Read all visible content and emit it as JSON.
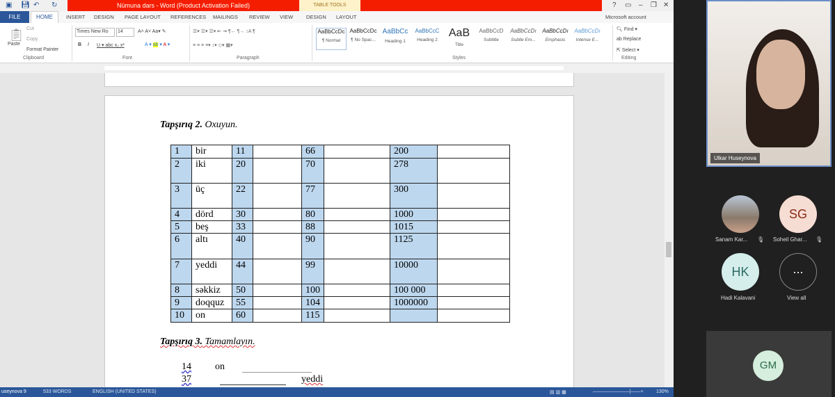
{
  "window": {
    "title": "Nümuna dars -  Word (Product Activation Failed)",
    "context_tab": "TABLE TOOLS",
    "account": "Microsoft account"
  },
  "tabs": [
    "FILE",
    "HOME",
    "INSERT",
    "DESIGN",
    "PAGE LAYOUT",
    "REFERENCES",
    "MAILINGS",
    "REVIEW",
    "VIEW",
    "DESIGN",
    "LAYOUT"
  ],
  "clipboard": {
    "paste": "Paste",
    "cut": "Cut",
    "copy": "Copy",
    "format_painter": "Format Painter",
    "label": "Clipboard"
  },
  "font": {
    "name": "Times New Ro",
    "size": "14",
    "label": "Font"
  },
  "paragraph": {
    "label": "Paragraph"
  },
  "styles": {
    "label": "Styles",
    "items": [
      {
        "preview": "AaBbCcDc",
        "name": "¶ Normal"
      },
      {
        "preview": "AaBbCcDc",
        "name": "¶ No Spac..."
      },
      {
        "preview": "AaBbCc",
        "name": "Heading 1"
      },
      {
        "preview": "AaBbCcC",
        "name": "Heading 2"
      },
      {
        "preview": "AaB",
        "name": "Title"
      },
      {
        "preview": "AaBbCcD",
        "name": "Subtitle"
      },
      {
        "preview": "AaBbCcDı",
        "name": "Subtle Em..."
      },
      {
        "preview": "AaBbCcDı",
        "name": "Emphasis"
      },
      {
        "preview": "AaBbCcDı",
        "name": "Intense E..."
      }
    ]
  },
  "editing": {
    "find": "Find",
    "replace": "Replace",
    "select": "Select",
    "label": "Editing"
  },
  "document": {
    "task2_bold": "Tapşırıq 2.",
    "task2_rest": " Oxuyun.",
    "table": [
      [
        "1",
        "bir",
        "11",
        "",
        "66",
        "",
        "200",
        ""
      ],
      [
        "2",
        "iki",
        "20",
        "",
        "70",
        "",
        "278",
        ""
      ],
      [
        "3",
        "üç",
        "22",
        "",
        "77",
        "",
        "300",
        ""
      ],
      [
        "4",
        "dörd",
        "30",
        "",
        "80",
        "",
        "1000",
        ""
      ],
      [
        "5",
        "beş",
        "33",
        "",
        "88",
        "",
        "1015",
        ""
      ],
      [
        "6",
        "altı",
        "40",
        "",
        "90",
        "",
        "1125",
        ""
      ],
      [
        "7",
        "yeddi",
        "44",
        "",
        "99",
        "",
        "10000",
        ""
      ],
      [
        "8",
        "səkkiz",
        "50",
        "",
        "100",
        "",
        "100 000",
        ""
      ],
      [
        "9",
        "doqquz",
        "55",
        "",
        "104",
        "",
        "1000000",
        ""
      ],
      [
        "10",
        "on",
        "60",
        "",
        "115",
        "",
        "",
        ""
      ]
    ],
    "task3_bold": "Tapşırıq 3.",
    "task3_rest": " Tamamlayın.",
    "ex1_num": "14",
    "ex1_word": "on",
    "ex2_num": "37",
    "ex2_word": "yeddi"
  },
  "status": {
    "page": "usеynova   9",
    "words": "533 WORDS",
    "language": "ENGLISH (UNITED STATES)",
    "zoom": "130%"
  },
  "meeting": {
    "speaker": "Ulkar Huseynova",
    "participants": [
      {
        "initials": "",
        "name": "Sanam Kar...",
        "muted": true
      },
      {
        "initials": "SG",
        "name": "Soheil Ghar...",
        "muted": true
      },
      {
        "initials": "HK",
        "name": "Hadi Kalavani"
      },
      {
        "initials": "...",
        "name": "View all"
      }
    ],
    "self": "GM"
  }
}
